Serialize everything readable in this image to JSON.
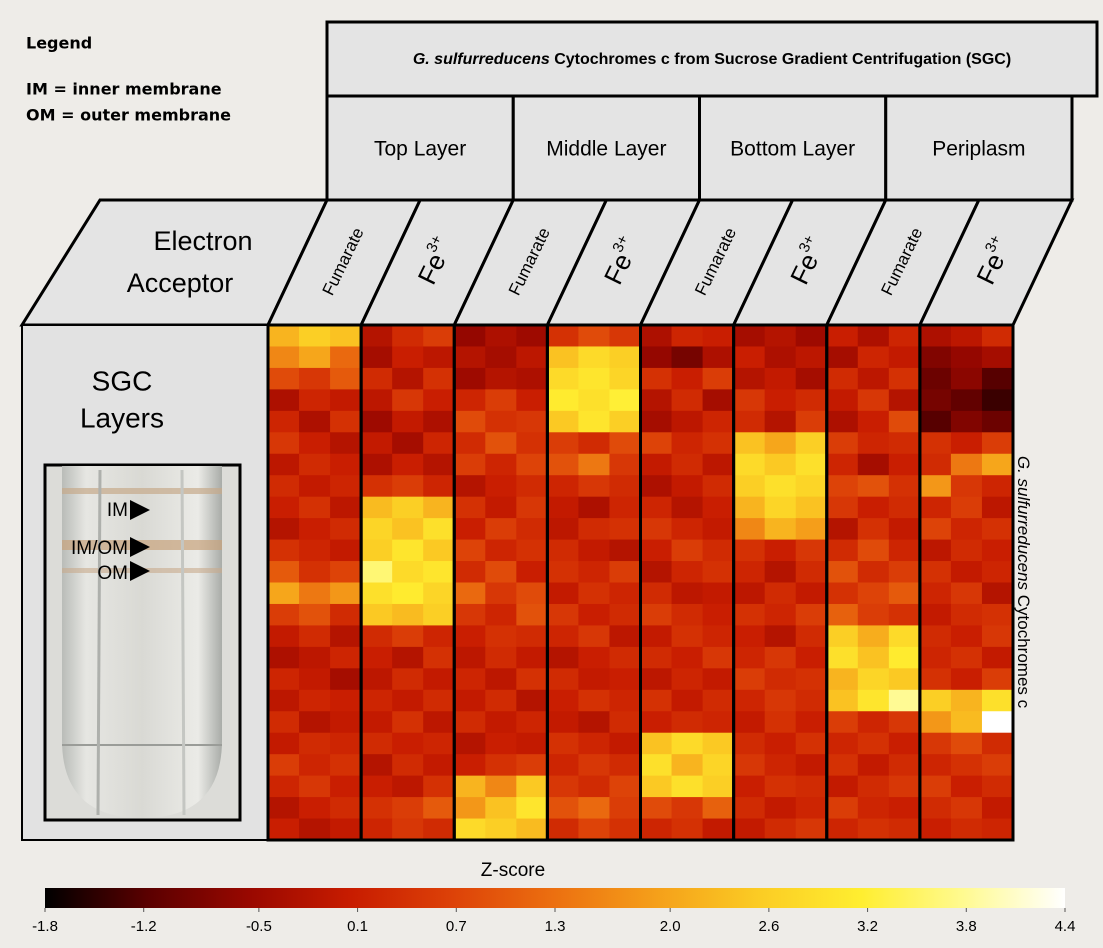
{
  "chart_data": {
    "type": "heatmap",
    "legend": {
      "title": "Legend",
      "items": [
        "IM = inner membrane",
        "OM = outer membrane"
      ]
    },
    "title": {
      "italic": "G. sulfurreducens",
      "rest": " Cytochromes c from Sucrose Gradient Centrifugation (SGC)"
    },
    "layers": [
      "Top Layer",
      "Middle Layer",
      "Bottom Layer",
      "Periplasm"
    ],
    "acceptor_label": [
      "Electron",
      "Acceptor"
    ],
    "acceptors": [
      "Fumarate",
      {
        "text": "Fe",
        "sup": "3+"
      },
      "Fumarate",
      {
        "text": "Fe",
        "sup": "3+"
      },
      "Fumarate",
      {
        "text": "Fe",
        "sup": "3+"
      },
      "Fumarate",
      {
        "text": "Fe",
        "sup": "3+"
      }
    ],
    "sgc_label": [
      "SGC",
      "Layers"
    ],
    "tube_labels": [
      "IM",
      "IM/OM",
      "OM"
    ],
    "row_label": {
      "italic": "G. sulfurreducens",
      "rest": " Cytochromes c"
    },
    "colorbar_label": "Z-score",
    "zlim": [
      -1.8,
      4.4
    ],
    "zticks": [
      -1.8,
      -1.2,
      -0.5,
      0.1,
      0.7,
      1.3,
      {
        "value": 2,
        "label": "2.0"
      },
      2.6,
      3.2,
      3.8,
      4.4
    ],
    "colors": [
      "#000000",
      "#5a0000",
      "#990800",
      "#c81c00",
      "#dd4208",
      "#ec7010",
      "#f5a01a",
      "#fbcc24",
      "#ffee30",
      "#fffa90",
      "#ffffff"
    ],
    "z": [
      [
        2.2,
        2.6,
        2.4,
        -0.2,
        0.3,
        0.6,
        -0.6,
        -0.3,
        -0.5,
        0.4,
        0.8,
        0.5,
        -0.3,
        0.2,
        0.1,
        -0.4,
        -0.2,
        -0.5,
        0.1,
        -0.3,
        0.2,
        -0.3,
        -0.1,
        0.3
      ],
      [
        1.6,
        2.0,
        1.2,
        -0.4,
        0.1,
        -0.1,
        -0.2,
        -0.4,
        -0.1,
        2.4,
        2.8,
        2.6,
        -0.6,
        -0.9,
        -0.3,
        0.1,
        -0.3,
        -0.1,
        -0.4,
        0.2,
        0.0,
        -0.8,
        -0.6,
        -0.4
      ],
      [
        0.8,
        0.5,
        1.0,
        0.3,
        -0.2,
        0.4,
        -0.5,
        -0.2,
        -0.3,
        2.8,
        3.0,
        2.7,
        0.4,
        0.1,
        0.6,
        -0.2,
        0.0,
        -0.4,
        0.3,
        -0.1,
        0.4,
        -1.0,
        -0.7,
        -1.2
      ],
      [
        -0.3,
        0.2,
        0.0,
        -0.1,
        0.5,
        0.1,
        0.2,
        0.6,
        0.1,
        3.1,
        2.9,
        3.2,
        -0.2,
        0.3,
        -0.4,
        0.5,
        0.1,
        0.3,
        0.0,
        0.5,
        -0.2,
        -0.9,
        -1.1,
        -1.4
      ],
      [
        0.2,
        -0.3,
        0.4,
        -0.5,
        0.0,
        -0.3,
        0.8,
        0.4,
        0.5,
        2.5,
        3.0,
        2.6,
        -0.4,
        -0.1,
        0.2,
        0.3,
        -0.2,
        0.6,
        -0.3,
        0.1,
        0.8,
        -1.2,
        -0.8,
        -1.0
      ],
      [
        0.5,
        0.1,
        -0.2,
        0.0,
        -0.4,
        0.2,
        0.3,
        0.9,
        0.4,
        0.6,
        0.3,
        0.8,
        0.7,
        0.2,
        0.4,
        2.4,
        2.0,
        2.6,
        0.6,
        0.2,
        0.3,
        0.4,
        0.1,
        0.6
      ],
      [
        -0.1,
        0.3,
        0.1,
        -0.3,
        0.1,
        -0.2,
        0.6,
        0.2,
        0.7,
        0.9,
        1.4,
        0.5,
        0.0,
        0.3,
        -0.1,
        2.8,
        2.5,
        2.9,
        0.2,
        -0.4,
        0.1,
        0.3,
        1.4,
        2.0
      ],
      [
        0.3,
        0.0,
        0.2,
        0.4,
        0.6,
        0.2,
        -0.2,
        0.1,
        0.3,
        0.2,
        0.5,
        0.3,
        -0.3,
        0.0,
        0.3,
        2.6,
        2.9,
        2.7,
        0.7,
        0.9,
        0.4,
        1.8,
        0.5,
        0.2
      ],
      [
        0.1,
        0.4,
        -0.1,
        2.3,
        2.6,
        2.2,
        0.4,
        0.0,
        0.5,
        0.0,
        -0.3,
        0.2,
        0.2,
        -0.2,
        0.1,
        2.2,
        2.7,
        2.4,
        0.5,
        0.1,
        0.3,
        0.2,
        0.6,
        -0.1
      ],
      [
        -0.2,
        0.1,
        0.3,
        2.7,
        2.4,
        2.9,
        0.1,
        0.6,
        0.3,
        -0.1,
        0.3,
        0.4,
        0.5,
        0.2,
        0.0,
        1.6,
        2.2,
        1.9,
        -0.2,
        0.4,
        0.0,
        0.7,
        0.2,
        0.4
      ],
      [
        0.4,
        0.2,
        0.0,
        2.6,
        3.0,
        2.5,
        0.7,
        0.2,
        0.4,
        0.3,
        0.0,
        -0.2,
        0.1,
        0.6,
        0.3,
        0.4,
        0.1,
        0.5,
        0.3,
        0.8,
        0.2,
        -0.1,
        0.3,
        0.1
      ],
      [
        1.0,
        0.4,
        0.7,
        3.6,
        2.8,
        3.0,
        0.3,
        0.8,
        0.1,
        0.4,
        0.2,
        0.6,
        -0.2,
        0.2,
        0.4,
        0.2,
        -0.2,
        0.3,
        0.9,
        0.3,
        0.6,
        0.4,
        0.0,
        0.2
      ],
      [
        2.0,
        1.4,
        1.8,
        2.9,
        3.1,
        2.7,
        1.2,
        0.5,
        0.8,
        0.0,
        0.4,
        0.2,
        0.3,
        -0.1,
        0.0,
        -0.1,
        0.3,
        0.0,
        0.4,
        0.7,
        1.0,
        0.2,
        0.5,
        -0.2
      ],
      [
        0.6,
        0.9,
        0.3,
        2.5,
        2.3,
        2.6,
        0.5,
        0.2,
        0.9,
        0.5,
        0.1,
        0.3,
        0.6,
        0.3,
        0.1,
        0.4,
        0.2,
        0.6,
        1.1,
        0.6,
        0.4,
        0.0,
        0.3,
        0.4
      ],
      [
        0.0,
        0.3,
        -0.2,
        0.3,
        0.6,
        0.2,
        0.1,
        0.4,
        0.3,
        0.2,
        0.5,
        -0.1,
        0.0,
        0.4,
        0.2,
        0.1,
        -0.2,
        0.3,
        2.6,
        2.1,
        2.8,
        0.3,
        0.1,
        0.5
      ],
      [
        -0.3,
        -0.1,
        0.2,
        0.1,
        -0.2,
        0.4,
        -0.1,
        0.3,
        0.0,
        -0.2,
        0.1,
        0.3,
        0.3,
        0.1,
        0.5,
        0.2,
        0.5,
        0.1,
        2.9,
        2.4,
        3.1,
        0.2,
        0.4,
        0.0
      ],
      [
        0.2,
        0.0,
        -0.4,
        -0.1,
        0.3,
        0.0,
        0.2,
        -0.1,
        0.4,
        0.3,
        0.0,
        0.1,
        -0.1,
        0.2,
        0.0,
        0.6,
        0.3,
        0.4,
        2.2,
        2.7,
        2.5,
        0.4,
        0.1,
        0.6
      ],
      [
        -0.1,
        0.2,
        0.1,
        0.2,
        0.0,
        0.3,
        0.0,
        0.3,
        -0.2,
        0.1,
        0.4,
        0.2,
        0.4,
        0.0,
        0.3,
        0.2,
        0.5,
        0.3,
        2.4,
        3.0,
        3.8,
        2.6,
        2.2,
        2.9
      ],
      [
        0.3,
        -0.2,
        0.0,
        0.0,
        0.4,
        -0.1,
        0.3,
        0.0,
        0.2,
        0.0,
        -0.2,
        0.3,
        0.1,
        0.3,
        0.2,
        0.0,
        0.4,
        0.1,
        0.6,
        0.2,
        0.5,
        1.8,
        2.3,
        4.4
      ],
      [
        0.0,
        0.3,
        0.2,
        0.3,
        0.1,
        0.2,
        -0.2,
        0.1,
        0.0,
        0.4,
        0.2,
        0.0,
        2.4,
        2.8,
        2.5,
        0.3,
        0.1,
        0.4,
        0.2,
        0.4,
        0.1,
        0.5,
        0.8,
        0.3
      ],
      [
        0.6,
        0.2,
        0.4,
        -0.2,
        0.3,
        0.0,
        0.1,
        0.4,
        0.6,
        0.2,
        0.5,
        0.3,
        2.9,
        2.2,
        2.7,
        0.5,
        0.2,
        0.0,
        0.4,
        0.0,
        0.3,
        0.2,
        0.4,
        0.6
      ],
      [
        0.2,
        0.5,
        0.1,
        0.1,
        -0.1,
        0.4,
        2.2,
        1.6,
        2.5,
        0.5,
        0.3,
        0.7,
        2.5,
        2.9,
        2.6,
        0.1,
        0.4,
        0.3,
        0.0,
        0.3,
        0.5,
        0.6,
        0.1,
        0.3
      ],
      [
        -0.2,
        0.1,
        0.3,
        0.4,
        0.6,
        1.0,
        1.8,
        2.4,
        3.0,
        0.9,
        1.2,
        0.6,
        0.8,
        0.5,
        1.1,
        0.3,
        0.0,
        0.2,
        0.6,
        0.2,
        0.1,
        0.3,
        0.5,
        0.0
      ],
      [
        0.1,
        -0.2,
        0.0,
        0.2,
        0.5,
        0.3,
        2.8,
        2.6,
        2.3,
        0.3,
        0.7,
        0.4,
        0.2,
        0.4,
        0.0,
        0.0,
        0.3,
        0.5,
        0.2,
        0.4,
        0.3,
        0.1,
        0.3,
        0.2
      ]
    ]
  }
}
